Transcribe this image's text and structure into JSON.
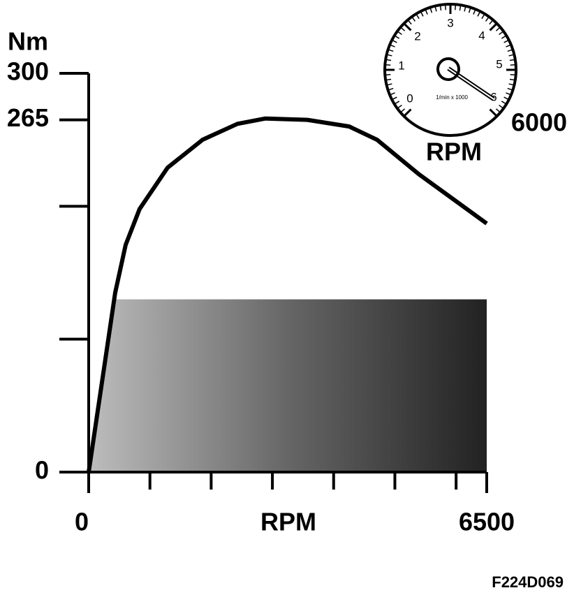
{
  "chart_data": {
    "type": "line",
    "y_label": "Nm",
    "x_label": "RPM",
    "x": [
      0,
      433,
      604,
      832,
      1288,
      1859,
      2430,
      2885,
      3570,
      4254,
      4710,
      5395,
      6500
    ],
    "series": [
      {
        "color": "#000000",
        "values": [
          0,
          135,
          171,
          198,
          229,
          250,
          262,
          266,
          265,
          260,
          250,
          224,
          187
        ]
      }
    ],
    "shaded_area": {
      "x": [
        0,
        433,
        6500
      ],
      "values": [
        0,
        130,
        130
      ],
      "color": "#555555"
    },
    "xlim": [
      0,
      6500
    ],
    "xticks": [
      0,
      6500
    ],
    "xminorticks": [
      1000,
      2000,
      3000,
      4000,
      5000,
      6000
    ],
    "ylim": [
      0,
      300
    ],
    "yticks": [
      0,
      265,
      300
    ],
    "yminorticks": [
      100,
      200
    ]
  },
  "gauge": {
    "dial_labels": [
      "0",
      "1",
      "2",
      "3",
      "4",
      "5",
      "6"
    ],
    "unit": "1/min x 1000",
    "reading": "6000",
    "label": "RPM"
  },
  "figure_code": "F224D069"
}
